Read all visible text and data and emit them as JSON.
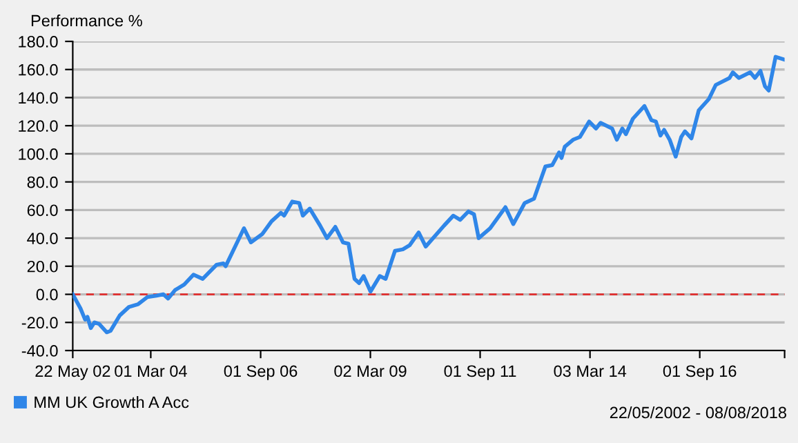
{
  "chart_data": {
    "type": "line",
    "ylabel": "Performance %",
    "x": [
      "2002-05-22",
      "2002-07-25",
      "2002-09-02",
      "2002-09-21",
      "2002-10-19",
      "2002-11-18",
      "2002-12-27",
      "2003-03-01",
      "2003-04-01",
      "2003-06-17",
      "2003-09-01",
      "2003-11-17",
      "2004-02-01",
      "2004-04-17",
      "2004-06-14",
      "2004-07-23",
      "2004-09-19",
      "2004-12-04",
      "2005-02-19",
      "2005-05-07",
      "2005-08-30",
      "2005-10-26",
      "2005-11-14",
      "2006-04-15",
      "2006-06-12",
      "2006-09-16",
      "2006-12-01",
      "2007-02-16",
      "2007-03-15",
      "2007-05-22",
      "2007-07-19",
      "2007-08-18",
      "2007-10-15",
      "2008-01-08",
      "2008-03-06",
      "2008-05-14",
      "2008-07-17",
      "2008-09-01",
      "2008-10-21",
      "2008-11-28",
      "2009-01-05",
      "2009-03-03",
      "2009-05-19",
      "2009-07-07",
      "2009-09-23",
      "2009-11-27",
      "2010-01-23",
      "2010-04-08",
      "2010-06-05",
      "2010-11-06",
      "2011-01-21",
      "2011-03-19",
      "2011-05-27",
      "2011-07-12",
      "2011-08-20",
      "2011-11-23",
      "2012-03-29",
      "2012-06-03",
      "2012-09-06",
      "2012-11-22",
      "2013-02-25",
      "2013-04-23",
      "2013-06-19",
      "2013-07-09",
      "2013-08-05",
      "2013-10-13",
      "2013-12-09",
      "2014-02-24",
      "2014-04-22",
      "2014-05-30",
      "2014-09-03",
      "2014-10-12",
      "2014-11-27",
      "2014-12-27",
      "2015-02-23",
      "2015-05-30",
      "2015-07-26",
      "2015-09-02",
      "2015-10-10",
      "2015-11-10",
      "2015-12-26",
      "2016-02-14",
      "2016-03-31",
      "2016-05-01",
      "2016-06-24",
      "2016-08-24",
      "2016-11-16",
      "2017-01-12",
      "2017-05-07",
      "2017-06-03",
      "2017-07-23",
      "2017-10-26",
      "2017-12-04",
      "2018-01-19",
      "2018-02-26",
      "2018-03-29",
      "2018-05-25",
      "2018-08-08"
    ],
    "series": [
      {
        "name": "MM UK Growth A Acc",
        "color": "#2f86e8",
        "values": [
          0,
          -10,
          -18,
          -16,
          -24,
          -20,
          -21,
          -27,
          -26,
          -15,
          -9,
          -7,
          -2,
          -1,
          0,
          -3,
          3,
          7,
          14,
          11,
          21,
          22,
          20,
          47,
          37,
          43,
          52,
          58,
          56,
          66,
          65,
          56,
          61,
          49,
          40,
          48,
          37,
          36,
          11,
          8,
          13,
          2,
          13,
          11,
          31,
          32,
          35,
          44,
          34,
          49,
          56,
          53,
          59,
          57,
          40,
          47,
          62,
          50,
          65,
          68,
          91,
          92,
          101,
          97,
          105,
          110,
          112,
          123,
          118,
          122,
          118,
          110,
          118,
          114,
          125,
          134,
          124,
          123,
          113,
          117,
          110,
          98,
          112,
          116,
          111,
          131,
          139,
          149,
          154,
          158,
          154,
          158,
          154,
          159,
          148,
          145,
          169,
          167
        ]
      }
    ],
    "xlim": [
      "2002-05-22",
      "2018-08-08"
    ],
    "xticks": [
      {
        "value": "2002-05-22",
        "label": "22 May 02"
      },
      {
        "value": "2004-03-01",
        "label": "01 Mar 04"
      },
      {
        "value": "2006-09-01",
        "label": "01 Sep 06"
      },
      {
        "value": "2009-03-02",
        "label": "02 Mar 09"
      },
      {
        "value": "2011-09-01",
        "label": "01 Sep 11"
      },
      {
        "value": "2014-03-03",
        "label": "03 Mar 14"
      },
      {
        "value": "2016-09-01",
        "label": "01 Sep 16"
      },
      {
        "value": "2018-08-08",
        "label": null
      }
    ],
    "ylim": [
      -40,
      180
    ],
    "yticks": [
      {
        "value": -40,
        "label": "-40.0"
      },
      {
        "value": -20,
        "label": "-20.0"
      },
      {
        "value": 0,
        "label": "0.0"
      },
      {
        "value": 20,
        "label": "20.0"
      },
      {
        "value": 40,
        "label": "40.0"
      },
      {
        "value": 60,
        "label": "60.0"
      },
      {
        "value": 80,
        "label": "80.0"
      },
      {
        "value": 100,
        "label": "100.0"
      },
      {
        "value": 120,
        "label": "120.0"
      },
      {
        "value": 140,
        "label": "140.0"
      },
      {
        "value": 160,
        "label": "160.0"
      },
      {
        "value": 180,
        "label": "180.0"
      }
    ],
    "ref_lines": [
      {
        "axis": "y",
        "value": 0,
        "color": "#e03030",
        "line_style": "dashed"
      }
    ],
    "grid": "y",
    "legend": "bottom left",
    "marker": "none",
    "line_style": "solid",
    "annotations": [
      "22/05/2002 - 08/08/2018"
    ]
  }
}
